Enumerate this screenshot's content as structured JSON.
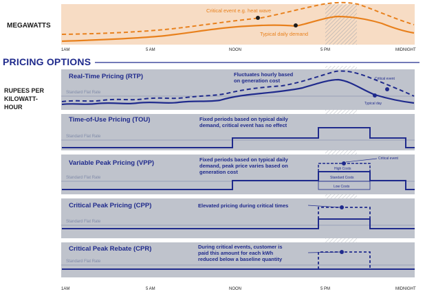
{
  "header": {
    "megawatts_label": "MEGAWATTS",
    "pricing_title": "PRICING OPTIONS",
    "rupees_label": [
      "RUPEES PER",
      "KILOWATT-",
      "HOUR"
    ]
  },
  "demand": {
    "critical_label": "Critical event e.g. heat wave",
    "typical_label": "Typical daily demand"
  },
  "axis_ticks": [
    "1AM",
    "5 AM",
    "NOON",
    "5 PM",
    "MIDNIGHT"
  ],
  "flat_rate_label": "Standard Flat Rate",
  "panels": [
    {
      "title": "Real-Time Pricing (RTP)",
      "desc": [
        "Fluctuates hourly based",
        "on generation cost"
      ],
      "note_critical": "Critical event",
      "note_typical": "Typical day"
    },
    {
      "title": "Time-of-Use Pricing (TOU)",
      "desc": [
        "Fixed periods based on typical daily",
        "demand, critical event has no effect"
      ]
    },
    {
      "title": "Variable Peak Pricing (VPP)",
      "desc": [
        "Fixed periods based on typical daily",
        "demand, peak price varies based on",
        "generation cost"
      ],
      "note_critical": "Critical event",
      "note_high": "High Costs",
      "note_std": "Standard Costs",
      "note_low": "Low Costs"
    },
    {
      "title": "Critical Peak Pricing (CPP)",
      "desc": [
        "Elevated pricing during critical times"
      ]
    },
    {
      "title": "Critical Peak Rebate (CPR)",
      "desc": [
        "During critical events, customer is",
        "paid this amount for each kWh",
        "reduced below a baseline quantity"
      ]
    }
  ],
  "colors": {
    "navy": "#1f2a8c",
    "orange": "#e8801c",
    "panel_bg": "#bfc3cc",
    "top_bg": "#f7dcc4"
  }
}
